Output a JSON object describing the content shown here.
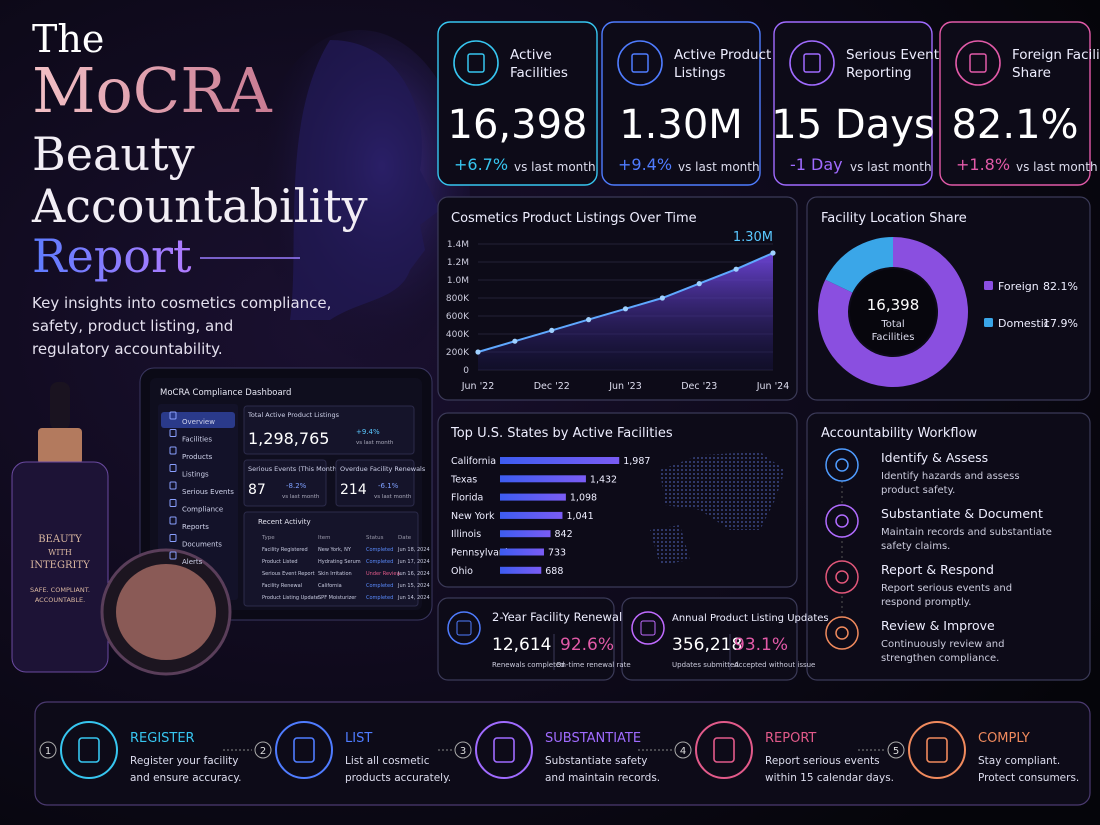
{
  "header": {
    "title": [
      "The",
      "MoCRA",
      "Beauty",
      "Accountability",
      "Report"
    ],
    "subtitle": [
      "Key insights into cosmetics compliance,",
      "safety, product listing, and",
      "regulatory accountability."
    ]
  },
  "product": {
    "bottle": [
      "BEAUTY",
      "WITH",
      "INTEGRITY"
    ],
    "tagline": [
      "SAFE. COMPLIANT.",
      "ACCOUNTABLE."
    ]
  },
  "tablet": {
    "title": "MoCRA Compliance Dashboard",
    "nav": [
      "Overview",
      "Facilities",
      "Products",
      "Listings",
      "Serious Events",
      "Compliance",
      "Reports",
      "Documents",
      "Alerts"
    ],
    "metrics": [
      {
        "label": "Total Active Product Listings",
        "value": "1,298,765",
        "change": "+9.4%",
        "note": "vs last month"
      },
      {
        "label": "Serious Events (This Month)",
        "value": "87",
        "change": "-8.2%",
        "note": "vs last month"
      },
      {
        "label": "Overdue Facility Renewals",
        "value": "214",
        "change": "-6.1%",
        "note": "vs last month"
      }
    ],
    "activity": {
      "title": "Recent Activity",
      "columns": [
        "Type",
        "Item",
        "Status",
        "Date"
      ],
      "rows": [
        [
          "Facility Registered",
          "New York, NY",
          "Completed",
          "Jun 18, 2024"
        ],
        [
          "Product Listed",
          "Hydrating Serum",
          "Completed",
          "Jun 17, 2024"
        ],
        [
          "Serious Event Report",
          "Skin Irritation",
          "Under Review",
          "Jun 16, 2024"
        ],
        [
          "Facility Renewal",
          "California",
          "Completed",
          "Jun 15, 2024"
        ],
        [
          "Product Listing Update",
          "SPF Moisturizer",
          "Completed",
          "Jun 14, 2024"
        ]
      ]
    }
  },
  "kpis": [
    {
      "label": [
        "Active",
        "Facilities"
      ],
      "value": "16,398",
      "change": "+6.7%",
      "note": "vs last month",
      "color": "#37c6f0"
    },
    {
      "label": [
        "Active Product",
        "Listings"
      ],
      "value": "1.30M",
      "change": "+9.4%",
      "note": "vs last month",
      "color": "#4f7cff"
    },
    {
      "label": [
        "Serious Event",
        "Reporting"
      ],
      "value": "15 Days",
      "change": "-1 Day",
      "note": "vs last month",
      "color": "#a06bff"
    },
    {
      "label": [
        "Foreign Facility",
        "Share"
      ],
      "value": "82.1%",
      "change": "+1.8%",
      "note": "vs last month",
      "color": "#e25aa8"
    }
  ],
  "chart_data": [
    {
      "type": "line",
      "title": "Cosmetics Product Listings Over Time",
      "categories": [
        "Jun '22",
        null,
        "Dec '22",
        null,
        "Jun '23",
        null,
        "Dec '23",
        null,
        "Jun '24"
      ],
      "values": [
        200000,
        320000,
        440000,
        560000,
        680000,
        800000,
        960000,
        1120000,
        1300000
      ],
      "value_labels": [
        null,
        null,
        null,
        null,
        null,
        null,
        null,
        null,
        "1.30M"
      ],
      "color": "#5fa8ff",
      "ylim": [
        0,
        1400000
      ],
      "yticks": [
        0,
        {
          "value": 200000,
          "label": "200K"
        },
        {
          "value": 400000,
          "label": "400K"
        },
        {
          "value": 600000,
          "label": "600K"
        },
        {
          "value": 800000,
          "label": "800K"
        },
        {
          "value": 1000000,
          "label": "1.0M"
        },
        {
          "value": 1200000,
          "label": "1.2M"
        },
        {
          "value": 1400000,
          "label": "1.4M"
        }
      ],
      "grid": true
    },
    {
      "type": "donut",
      "title": "Facility Location Share",
      "categories": [
        "Foreign",
        "Domestic"
      ],
      "values": [
        82.1,
        17.9
      ],
      "value_labels": [
        "82.1%",
        "17.9%"
      ],
      "colors": [
        "#8a4fe0",
        "#3aa6e8"
      ],
      "center_value": "16,398",
      "center_label": [
        "Total",
        "Facilities"
      ]
    },
    {
      "type": "bar",
      "orientation": "horizontal",
      "title": "Top U.S. States by Active Facilities",
      "categories": [
        "California",
        "Texas",
        "Florida",
        "New York",
        "Illinois",
        "Pennsylvania",
        "Ohio"
      ],
      "values": [
        1987,
        1432,
        1098,
        1041,
        842,
        733,
        688
      ],
      "value_labels": [
        "1,987",
        "1,432",
        "1,098",
        "1,041",
        "842",
        "733",
        "688"
      ],
      "color": "#5a5ff0",
      "xlim": [
        0,
        2000
      ]
    }
  ],
  "cards": [
    {
      "title": "2-Year Facility Renewal",
      "value": "12,614",
      "value_note": "Renewals completed",
      "rate": "92.6%",
      "rate_note": "On-time renewal rate",
      "color": "#e25aa8"
    },
    {
      "title": "Annual Product Listing Updates",
      "value": "356,218",
      "value_note": "Updates submitted",
      "rate": "93.1%",
      "rate_note": "Accepted without issue",
      "color": "#e25aa8"
    }
  ],
  "workflow": {
    "title": "Accountability Workflow",
    "items": [
      {
        "title": "Identify & Assess",
        "desc": [
          "Identify hazards and assess",
          "product safety."
        ]
      },
      {
        "title": "Substantiate & Document",
        "desc": [
          "Maintain records and substantiate",
          "safety claims."
        ]
      },
      {
        "title": "Report & Respond",
        "desc": [
          "Report serious events and",
          "respond promptly."
        ]
      },
      {
        "title": "Review & Improve",
        "desc": [
          "Continuously review and",
          "strengthen compliance."
        ]
      }
    ]
  },
  "steps": [
    {
      "number": "1",
      "title": "REGISTER",
      "desc": [
        "Register your facility",
        "and ensure accuracy."
      ]
    },
    {
      "number": "2",
      "title": "LIST",
      "desc": [
        "List all cosmetic",
        "products accurately."
      ]
    },
    {
      "number": "3",
      "title": "SUBSTANTIATE",
      "desc": [
        "Substantiate safety",
        "and maintain records."
      ]
    },
    {
      "number": "4",
      "title": "REPORT",
      "desc": [
        "Report serious events",
        "within 15 calendar days."
      ]
    },
    {
      "number": "5",
      "title": "COMPLY",
      "desc": [
        "Stay compliant.",
        "Protect consumers."
      ]
    }
  ]
}
